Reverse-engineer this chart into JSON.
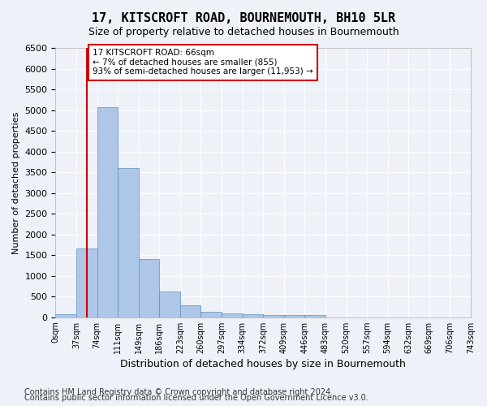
{
  "title": "17, KITSCROFT ROAD, BOURNEMOUTH, BH10 5LR",
  "subtitle": "Size of property relative to detached houses in Bournemouth",
  "xlabel": "Distribution of detached houses by size in Bournemouth",
  "ylabel": "Number of detached properties",
  "bar_values": [
    75,
    1650,
    5075,
    3600,
    1400,
    625,
    290,
    140,
    90,
    80,
    60,
    55,
    50,
    0,
    0,
    0,
    0,
    0,
    0,
    0
  ],
  "bin_labels": [
    "0sqm",
    "37sqm",
    "74sqm",
    "111sqm",
    "149sqm",
    "186sqm",
    "223sqm",
    "260sqm",
    "297sqm",
    "334sqm",
    "372sqm",
    "409sqm",
    "446sqm",
    "483sqm",
    "520sqm",
    "557sqm",
    "594sqm",
    "632sqm",
    "669sqm",
    "706sqm",
    "743sqm"
  ],
  "bar_color": "#aec6e8",
  "bar_edge_color": "#5a8fc2",
  "vline_x": 1.0,
  "vline_color": "#cc0000",
  "annotation_text": "17 KITSCROFT ROAD: 66sqm\n← 7% of detached houses are smaller (855)\n93% of semi-detached houses are larger (11,953) →",
  "annotation_box_color": "#ffffff",
  "annotation_box_edge": "#cc0000",
  "ylim": [
    0,
    6500
  ],
  "yticks": [
    0,
    500,
    1000,
    1500,
    2000,
    2500,
    3000,
    3500,
    4000,
    4500,
    5000,
    5500,
    6000,
    6500
  ],
  "footer_line1": "Contains HM Land Registry data © Crown copyright and database right 2024.",
  "footer_line2": "Contains public sector information licensed under the Open Government Licence v3.0.",
  "bg_color": "#eef2f8",
  "plot_bg_color": "#eef2f8",
  "grid_color": "#ffffff",
  "title_fontsize": 11,
  "subtitle_fontsize": 9,
  "xlabel_fontsize": 9,
  "ylabel_fontsize": 8,
  "footer_fontsize": 7
}
